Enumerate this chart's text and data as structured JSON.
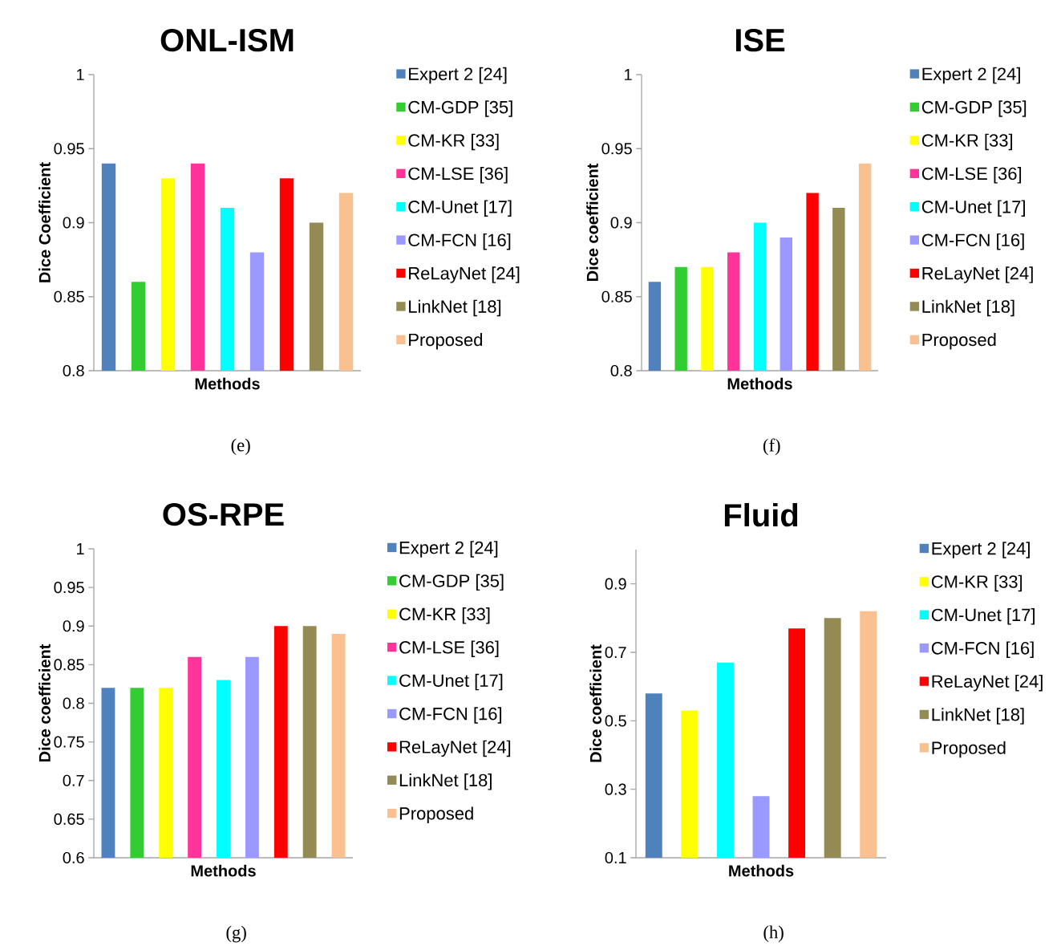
{
  "chart_data": [
    {
      "type": "bar",
      "title": "ONL-ISM",
      "xlabel": "Methods",
      "ylabel": "Dice Coefficient",
      "categories": [
        null
      ],
      "ylim": [
        0.8,
        1
      ],
      "yticks": [
        0.8,
        0.85,
        0.9,
        0.95,
        1
      ],
      "legend": "right",
      "annotations": [
        "(e)"
      ],
      "series": [
        {
          "name": "Expert 2  [24]",
          "color": "#4f81bd",
          "values": [
            0.94
          ]
        },
        {
          "name": "CM-GDP [35]",
          "color": "#33cc33",
          "values": [
            0.86
          ]
        },
        {
          "name": "CM-KR [33]",
          "color": "#ffff00",
          "values": [
            0.93
          ]
        },
        {
          "name": "CM-LSE [36]",
          "color": "#ff3399",
          "values": [
            0.94
          ]
        },
        {
          "name": "CM-Unet [17]",
          "color": "#00ffff",
          "values": [
            0.91
          ]
        },
        {
          "name": "CM-FCN [16]",
          "color": "#9999ff",
          "values": [
            0.88
          ]
        },
        {
          "name": "ReLayNet [24]",
          "color": "#ff0000",
          "values": [
            0.93
          ]
        },
        {
          "name": "LinkNet [18]",
          "color": "#948a54",
          "values": [
            0.9
          ]
        },
        {
          "name": "Proposed",
          "color": "#fac090",
          "values": [
            0.92
          ]
        }
      ]
    },
    {
      "type": "bar",
      "title": "ISE",
      "xlabel": "Methods",
      "ylabel": "Dice coefficient",
      "categories": [
        null
      ],
      "ylim": [
        0.8,
        1
      ],
      "yticks": [
        0.8,
        0.85,
        0.9,
        0.95,
        1
      ],
      "legend": "right",
      "annotations": [
        "(f)"
      ],
      "series": [
        {
          "name": "Expert 2  [24]",
          "color": "#4f81bd",
          "values": [
            0.86
          ]
        },
        {
          "name": "CM-GDP [35]",
          "color": "#33cc33",
          "values": [
            0.87
          ]
        },
        {
          "name": "CM-KR [33]",
          "color": "#ffff00",
          "values": [
            0.87
          ]
        },
        {
          "name": "CM-LSE [36]",
          "color": "#ff3399",
          "values": [
            0.88
          ]
        },
        {
          "name": "CM-Unet [17]",
          "color": "#00ffff",
          "values": [
            0.9
          ]
        },
        {
          "name": "CM-FCN [16]",
          "color": "#9999ff",
          "values": [
            0.89
          ]
        },
        {
          "name": "ReLayNet [24]",
          "color": "#ff0000",
          "values": [
            0.92
          ]
        },
        {
          "name": "LinkNet [18]",
          "color": "#948a54",
          "values": [
            0.91
          ]
        },
        {
          "name": "Proposed",
          "color": "#fac090",
          "values": [
            0.94
          ]
        }
      ]
    },
    {
      "type": "bar",
      "title": "OS-RPE",
      "xlabel": "Methods",
      "ylabel": "Dice coefficient",
      "categories": [
        null
      ],
      "ylim": [
        0.6,
        1
      ],
      "yticks": [
        0.6,
        0.65,
        0.7,
        0.75,
        0.8,
        0.85,
        0.9,
        0.95,
        1
      ],
      "legend": "right",
      "annotations": [
        "(g)"
      ],
      "series": [
        {
          "name": "Expert 2  [24]",
          "color": "#4f81bd",
          "values": [
            0.82
          ]
        },
        {
          "name": "CM-GDP [35]",
          "color": "#33cc33",
          "values": [
            0.82
          ]
        },
        {
          "name": "CM-KR [33]",
          "color": "#ffff00",
          "values": [
            0.82
          ]
        },
        {
          "name": "CM-LSE [36]",
          "color": "#ff3399",
          "values": [
            0.86
          ]
        },
        {
          "name": "CM-Unet [17]",
          "color": "#00ffff",
          "values": [
            0.83
          ]
        },
        {
          "name": "CM-FCN [16]",
          "color": "#9999ff",
          "values": [
            0.86
          ]
        },
        {
          "name": "ReLayNet [24]",
          "color": "#ff0000",
          "values": [
            0.9
          ]
        },
        {
          "name": "LinkNet [18]",
          "color": "#948a54",
          "values": [
            0.9
          ]
        },
        {
          "name": "Proposed",
          "color": "#fac090",
          "values": [
            0.89
          ]
        }
      ]
    },
    {
      "type": "bar",
      "title": "Fluid",
      "xlabel": "Methods",
      "ylabel": "Dice coefficient",
      "categories": [
        null
      ],
      "ylim": [
        0.1,
        1.0
      ],
      "yticks": [
        0.1,
        0.3,
        0.5,
        0.7,
        0.9
      ],
      "legend": "right",
      "annotations": [
        "(h)"
      ],
      "series": [
        {
          "name": "Expert 2  [24]",
          "color": "#4f81bd",
          "values": [
            0.58
          ]
        },
        {
          "name": "CM-KR [33]",
          "color": "#ffff00",
          "values": [
            0.53
          ]
        },
        {
          "name": "CM-Unet [17]",
          "color": "#00ffff",
          "values": [
            0.67
          ]
        },
        {
          "name": "CM-FCN [16]",
          "color": "#9999ff",
          "values": [
            0.28
          ]
        },
        {
          "name": "ReLayNet [24]",
          "color": "#ff0000",
          "values": [
            0.77
          ]
        },
        {
          "name": "LinkNet [18]",
          "color": "#948a54",
          "values": [
            0.8
          ]
        },
        {
          "name": "Proposed",
          "color": "#fac090",
          "values": [
            0.82
          ]
        }
      ]
    }
  ]
}
